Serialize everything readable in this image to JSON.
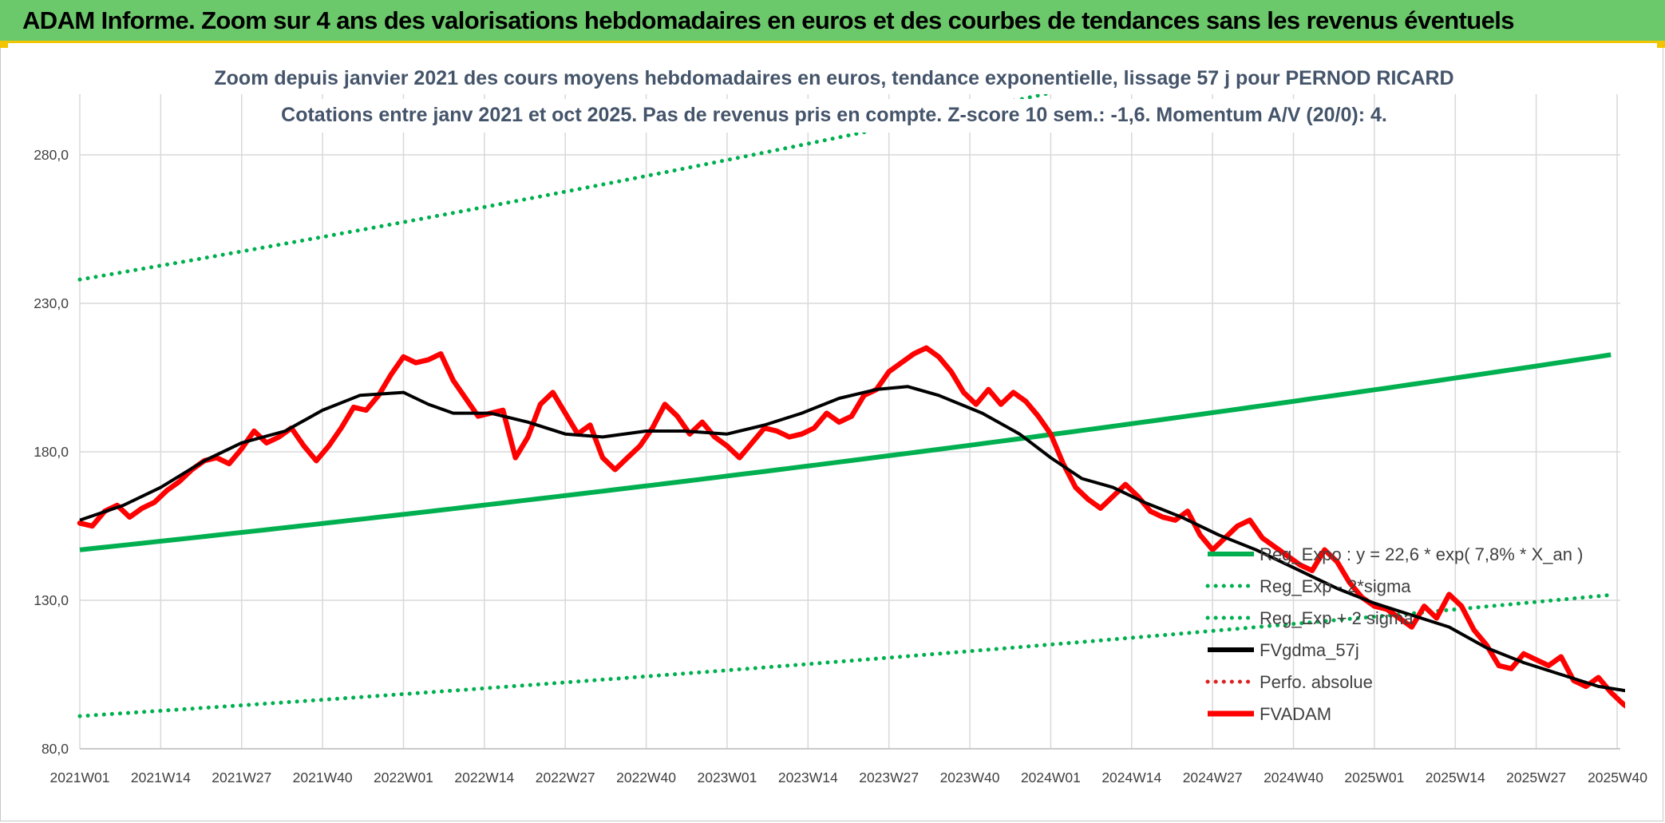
{
  "header": {
    "title": "ADAM Informe. Zoom sur 4 ans des valorisations hebdomadaires en euros et des courbes de tendances sans les revenus éventuels"
  },
  "colors": {
    "header_bg": "#6cc96b",
    "header_border": "#f2c500",
    "regression": "#00b050",
    "price": "#ff0000",
    "moving_average": "#000000",
    "perf_absolue": "#e02020",
    "subtitle_text": "#44546a",
    "grid": "#d9d9d9"
  },
  "chart_data": {
    "type": "line",
    "title_line1": "Zoom depuis janvier 2021 des cours moyens hebdomadaires en euros, tendance exponentielle, lissage 57 j pour PERNOD RICARD",
    "title_line2": "Cotations entre janv 2021 et oct 2025. Pas de revenus pris en compte. Z-score 10 sem.: -1,6. Momentum A/V (20/0): 4.",
    "y_axis": {
      "min": 80,
      "max": 300,
      "ticks": [
        "80,0",
        "130,0",
        "180,0",
        "230,0",
        "280,0"
      ],
      "tick_values": [
        80,
        130,
        180,
        230,
        280
      ]
    },
    "x_axis": {
      "tick_labels": [
        "2021W01",
        "2021W14",
        "2021W27",
        "2021W40",
        "2022W01",
        "2022W14",
        "2022W27",
        "2022W40",
        "2023W01",
        "2023W14",
        "2023W27",
        "2023W40",
        "2024W01",
        "2024W14",
        "2024W27",
        "2024W40",
        "2025W01",
        "2025W14",
        "2025W27",
        "2025W40"
      ],
      "weeks_between_ticks": 13
    },
    "grid": true,
    "legend_position": "bottom-right",
    "legend": [
      {
        "label": "Reg_Expo : y = 22,6 * exp( 7,8% *  X_an )",
        "style": "solid",
        "color": "#00b050"
      },
      {
        "label": "Reg_Exp - 2*sigma",
        "style": "dotted",
        "color": "#00b050"
      },
      {
        "label": "Reg_Exp + 2 sigma",
        "style": "dotted",
        "color": "#00b050"
      },
      {
        "label": "FVgdma_57j",
        "style": "solid",
        "color": "#000000"
      },
      {
        "label": "Perfo. absolue",
        "style": "dotted",
        "color": "#e02020"
      },
      {
        "label": "FVADAM",
        "style": "solid",
        "color": "#ff0000"
      }
    ],
    "series": [
      {
        "name": "Reg_Expo : y = 22,6 * exp( 7,8% *  X_an )",
        "style": "solid",
        "color": "#00b050",
        "start": 147,
        "end": 213
      },
      {
        "name": "Reg_Exp - 2*sigma",
        "style": "dotted",
        "color": "#00b050",
        "start": 91,
        "end": 132
      },
      {
        "name": "Reg_Exp + 2 sigma",
        "style": "dotted",
        "color": "#00b050",
        "start": 238,
        "end": 345
      },
      {
        "name": "FVgdma_57j",
        "style": "solid",
        "color": "#000000",
        "keypoints": [
          [
            0,
            157
          ],
          [
            7,
            162
          ],
          [
            13,
            168
          ],
          [
            20,
            177
          ],
          [
            26,
            183
          ],
          [
            33,
            187
          ],
          [
            39,
            194
          ],
          [
            45,
            199
          ],
          [
            52,
            200
          ],
          [
            56,
            196
          ],
          [
            60,
            193
          ],
          [
            66,
            193
          ],
          [
            72,
            190
          ],
          [
            78,
            186
          ],
          [
            84,
            185
          ],
          [
            91,
            187
          ],
          [
            97,
            187
          ],
          [
            104,
            186
          ],
          [
            110,
            189
          ],
          [
            116,
            193
          ],
          [
            122,
            198
          ],
          [
            128,
            201
          ],
          [
            133,
            202
          ],
          [
            138,
            199
          ],
          [
            145,
            193
          ],
          [
            151,
            186
          ],
          [
            156,
            178
          ],
          [
            161,
            171
          ],
          [
            166,
            168
          ],
          [
            171,
            163
          ],
          [
            177,
            158
          ],
          [
            183,
            152
          ],
          [
            189,
            147
          ],
          [
            195,
            141
          ],
          [
            202,
            134
          ],
          [
            208,
            129
          ],
          [
            214,
            125
          ],
          [
            220,
            121
          ],
          [
            226,
            114
          ],
          [
            232,
            109
          ],
          [
            238,
            105
          ],
          [
            244,
            101
          ],
          [
            250,
            99
          ],
          [
            256,
            97
          ],
          [
            262,
            95
          ],
          [
            268,
            94
          ],
          [
            273,
            93
          ],
          [
            278,
            92
          ],
          [
            282,
            89
          ]
        ]
      },
      {
        "name": "FVADAM",
        "style": "solid",
        "color": "#ff0000",
        "keypoints": [
          [
            0,
            156
          ],
          [
            2,
            155
          ],
          [
            4,
            160
          ],
          [
            6,
            162
          ],
          [
            8,
            158
          ],
          [
            10,
            161
          ],
          [
            12,
            163
          ],
          [
            14,
            167
          ],
          [
            16,
            170
          ],
          [
            18,
            174
          ],
          [
            20,
            177
          ],
          [
            22,
            178
          ],
          [
            24,
            176
          ],
          [
            26,
            181
          ],
          [
            28,
            187
          ],
          [
            30,
            183
          ],
          [
            32,
            185
          ],
          [
            34,
            188
          ],
          [
            36,
            182
          ],
          [
            38,
            177
          ],
          [
            40,
            182
          ],
          [
            42,
            188
          ],
          [
            44,
            195
          ],
          [
            46,
            194
          ],
          [
            48,
            199
          ],
          [
            50,
            206
          ],
          [
            52,
            212
          ],
          [
            54,
            210
          ],
          [
            56,
            211
          ],
          [
            58,
            213
          ],
          [
            60,
            204
          ],
          [
            62,
            198
          ],
          [
            64,
            192
          ],
          [
            66,
            193
          ],
          [
            68,
            194
          ],
          [
            70,
            178
          ],
          [
            72,
            185
          ],
          [
            74,
            196
          ],
          [
            76,
            200
          ],
          [
            78,
            193
          ],
          [
            80,
            186
          ],
          [
            82,
            189
          ],
          [
            84,
            178
          ],
          [
            86,
            174
          ],
          [
            88,
            178
          ],
          [
            90,
            182
          ],
          [
            92,
            188
          ],
          [
            94,
            196
          ],
          [
            96,
            192
          ],
          [
            98,
            186
          ],
          [
            100,
            190
          ],
          [
            102,
            185
          ],
          [
            104,
            182
          ],
          [
            106,
            178
          ],
          [
            108,
            183
          ],
          [
            110,
            188
          ],
          [
            112,
            187
          ],
          [
            114,
            185
          ],
          [
            116,
            186
          ],
          [
            118,
            188
          ],
          [
            120,
            193
          ],
          [
            122,
            190
          ],
          [
            124,
            192
          ],
          [
            126,
            199
          ],
          [
            128,
            201
          ],
          [
            130,
            207
          ],
          [
            132,
            210
          ],
          [
            134,
            213
          ],
          [
            136,
            215
          ],
          [
            138,
            212
          ],
          [
            140,
            207
          ],
          [
            142,
            200
          ],
          [
            144,
            196
          ],
          [
            146,
            201
          ],
          [
            148,
            196
          ],
          [
            150,
            200
          ],
          [
            152,
            197
          ],
          [
            154,
            192
          ],
          [
            156,
            186
          ],
          [
            158,
            176
          ],
          [
            160,
            168
          ],
          [
            162,
            164
          ],
          [
            164,
            161
          ],
          [
            166,
            165
          ],
          [
            168,
            169
          ],
          [
            170,
            165
          ],
          [
            172,
            160
          ],
          [
            174,
            158
          ],
          [
            176,
            157
          ],
          [
            178,
            160
          ],
          [
            180,
            152
          ],
          [
            182,
            147
          ],
          [
            184,
            151
          ],
          [
            186,
            155
          ],
          [
            188,
            157
          ],
          [
            190,
            151
          ],
          [
            192,
            148
          ],
          [
            194,
            145
          ],
          [
            196,
            142
          ],
          [
            198,
            140
          ],
          [
            200,
            147
          ],
          [
            202,
            143
          ],
          [
            204,
            136
          ],
          [
            206,
            131
          ],
          [
            208,
            128
          ],
          [
            210,
            127
          ],
          [
            212,
            124
          ],
          [
            214,
            121
          ],
          [
            216,
            128
          ],
          [
            218,
            124
          ],
          [
            220,
            132
          ],
          [
            222,
            128
          ],
          [
            224,
            120
          ],
          [
            226,
            115
          ],
          [
            228,
            108
          ],
          [
            230,
            107
          ],
          [
            232,
            112
          ],
          [
            234,
            110
          ],
          [
            236,
            108
          ],
          [
            238,
            111
          ],
          [
            240,
            103
          ],
          [
            242,
            101
          ],
          [
            244,
            104
          ],
          [
            246,
            99
          ],
          [
            248,
            95
          ],
          [
            250,
            92
          ],
          [
            252,
            97
          ],
          [
            254,
            99
          ],
          [
            256,
            96
          ],
          [
            258,
            94
          ],
          [
            260,
            93
          ],
          [
            262,
            90
          ],
          [
            264,
            88
          ],
          [
            266,
            91
          ],
          [
            268,
            95
          ],
          [
            270,
            94
          ],
          [
            272,
            98
          ],
          [
            274,
            101
          ],
          [
            276,
            99
          ],
          [
            278,
            94
          ],
          [
            280,
            89
          ],
          [
            282,
            85
          ]
        ]
      },
      {
        "name": "Perfo. absolue",
        "style": "dotted",
        "color": "#e02020",
        "values": []
      }
    ]
  }
}
